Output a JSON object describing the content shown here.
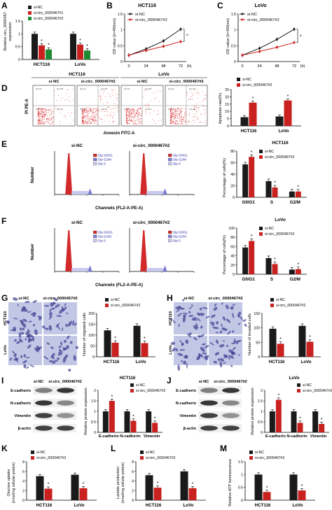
{
  "colors": {
    "black": "#1a1a1a",
    "red": "#c8211f",
    "green": "#1d8a34",
    "grey": "#555555",
    "flow_dot": "#d8262a",
    "hist_fill": "#d22a2a",
    "g01": "#d22a2a",
    "g2m": "#7a7ad6",
    "s_phase": "#c9c9f0"
  },
  "legend": {
    "nc": "si-NC",
    "n1": "si-circ_0000467#1",
    "n2": "si-circ_0000467#2"
  },
  "panels": {
    "A": {
      "letter": "A",
      "ylabel": [
        "Relative circ_0000467",
        "expression"
      ],
      "categories": [
        "HCT116",
        "LoVo"
      ]
    },
    "B": {
      "letter": "B",
      "title": "HCT116",
      "ylabel": "OD value (λ=450nm)"
    },
    "C": {
      "letter": "C",
      "title": "LoVo",
      "ylabel": "OD value (λ=450nm)"
    },
    "D": {
      "letter": "D",
      "header_groups": [
        "HCT116",
        "LoVo"
      ],
      "cols": [
        "si-NC",
        "si-circ_0000467#2",
        "si-NC",
        "si-circ_0000467#2"
      ],
      "xlabel": "Annexin FITC-A",
      "ylabel": "PI PE-A",
      "bar_ylabel": "Apoptosis rate(%)",
      "quads": [
        "Q1-UL",
        "Q1-UR",
        "Q1-LL",
        "Q1-LR"
      ]
    },
    "E": {
      "letter": "E",
      "cols": [
        "si-NC",
        "si-circ_0000467#2"
      ],
      "xlabel": "Channels (FL2-A-PE-A)",
      "ylabel": "Number",
      "bar_title": "HCT116",
      "bar_ylabel": "Percentage of cells(%)"
    },
    "F": {
      "letter": "F",
      "cols": [
        "si-NC",
        "si-circ_0000467#2"
      ],
      "xlabel": "Channels (FL2-A-PE-A)",
      "ylabel": "Number",
      "bar_title": "LoVo",
      "bar_ylabel": "Percentage of cells(%)"
    },
    "hist_legend": [
      "Dip G0/G1",
      "Dip G2/M",
      "Dip S"
    ],
    "G": {
      "letter": "G",
      "cols": [
        "si-NC",
        "si-circ_0000467#2"
      ],
      "rows": [
        "HCT116",
        "LoVo"
      ],
      "bar_ylabel": "Number of migrated cells"
    },
    "H": {
      "letter": "H",
      "cols": [
        "si-NC",
        "si-circ_0000467#2"
      ],
      "rows": [
        "HCT116",
        "LoVo"
      ],
      "bar_ylabel": "Number of invaded cells"
    },
    "I": {
      "letter": "I",
      "cols": [
        "si-NC",
        "si-circ_0000467#2"
      ],
      "blots": [
        "E-cadherin",
        "N-cadherin",
        "Vimentin",
        "β-actin"
      ],
      "bar_title": "HCT116",
      "bar_ylabel": "Relative protein expression"
    },
    "J": {
      "letter": "J",
      "cols": [
        "si-NC",
        "si-circ_0000467#2"
      ],
      "blots": [
        "E-cadherin",
        "N-cadherin",
        "Vimentin",
        "β-actin"
      ],
      "bar_title": "LoVo",
      "bar_ylabel": "Relative protein expression"
    },
    "K": {
      "letter": "K",
      "ylabel": [
        "Glucose uptake",
        "(nmol/mg cellular protein)"
      ]
    },
    "L": {
      "letter": "L",
      "ylabel": [
        "Lactate production",
        "(nmol/mg cellular protein)"
      ]
    },
    "M": {
      "letter": "M",
      "ylabel": "Relative ATP luminescence"
    }
  },
  "chart_data": [
    {
      "panel": "A",
      "type": "bar",
      "categories": [
        "HCT116",
        "LoVo"
      ],
      "series": [
        {
          "name": "si-NC",
          "values": [
            1.0,
            1.0
          ]
        },
        {
          "name": "si-circ_0000467#1",
          "values": [
            0.55,
            0.58
          ]
        },
        {
          "name": "si-circ_0000467#2",
          "values": [
            0.39,
            0.35
          ]
        }
      ],
      "ylim": [
        0,
        1.5
      ],
      "yticks": [
        0,
        0.5,
        1.0,
        1.5
      ],
      "significance": "*"
    },
    {
      "panel": "B",
      "type": "line",
      "x": [
        0,
        24,
        48,
        72
      ],
      "xlabel_unit": "(h)",
      "series": [
        {
          "name": "si-NC",
          "values": [
            0.2,
            0.4,
            0.65,
            1.02
          ]
        },
        {
          "name": "si-circ_0000467#2",
          "values": [
            0.2,
            0.35,
            0.48,
            0.63
          ]
        }
      ],
      "ylim": [
        0,
        1.5
      ],
      "yticks": [
        0,
        0.5,
        1.0,
        1.5
      ],
      "significance": "*"
    },
    {
      "panel": "C",
      "type": "line",
      "x": [
        0,
        24,
        48,
        72
      ],
      "xlabel_unit": "(h)",
      "series": [
        {
          "name": "si-NC",
          "values": [
            0.2,
            0.42,
            0.7,
            1.02
          ]
        },
        {
          "name": "si-circ_0000467#2",
          "values": [
            0.2,
            0.32,
            0.45,
            0.6
          ]
        }
      ],
      "ylim": [
        0,
        1.5
      ],
      "yticks": [
        0,
        0.5,
        1.0,
        1.5
      ],
      "significance": "*"
    },
    {
      "panel": "D",
      "type": "bar",
      "categories": [
        "HCT116",
        "LoVo"
      ],
      "series": [
        {
          "name": "si-NC",
          "values": [
            6,
            6.5
          ]
        },
        {
          "name": "si-circ_0000467#2",
          "values": [
            16,
            17.5
          ]
        }
      ],
      "ylim": [
        0,
        25
      ],
      "yticks": [
        0,
        5,
        10,
        15,
        20,
        25
      ],
      "significance": "*"
    },
    {
      "panel": "E",
      "type": "bar",
      "categories": [
        "G0/G1",
        "S",
        "G2/M"
      ],
      "series": [
        {
          "name": "si-NC",
          "values": [
            57,
            28,
            10
          ]
        },
        {
          "name": "si-circ_0000467#2",
          "values": [
            70,
            17,
            10
          ]
        }
      ],
      "ylim": [
        0,
        80
      ],
      "yticks": [
        0,
        20,
        40,
        60,
        80
      ],
      "significance": "*"
    },
    {
      "panel": "F",
      "type": "bar",
      "categories": [
        "G0/G1",
        "S",
        "G2/M"
      ],
      "series": [
        {
          "name": "si-NC",
          "values": [
            58,
            35,
            10
          ]
        },
        {
          "name": "si-circ_0000467#2",
          "values": [
            72,
            22,
            11
          ]
        }
      ],
      "ylim": [
        0,
        100
      ],
      "yticks": [
        0,
        20,
        40,
        60,
        80,
        100
      ],
      "significance": "*"
    },
    {
      "panel": "G",
      "type": "bar",
      "categories": [
        "HCT116",
        "LoVo"
      ],
      "series": [
        {
          "name": "si-NC",
          "values": [
            122,
            143
          ]
        },
        {
          "name": "si-circ_0000467#2",
          "values": [
            65,
            63
          ]
        }
      ],
      "ylim": [
        0,
        200
      ],
      "yticks": [
        0,
        50,
        100,
        150,
        200
      ],
      "significance": "*"
    },
    {
      "panel": "H",
      "type": "bar",
      "categories": [
        "HCT116",
        "LoVo"
      ],
      "series": [
        {
          "name": "si-NC",
          "values": [
            97,
            107
          ]
        },
        {
          "name": "si-circ_0000467#2",
          "values": [
            45,
            52
          ]
        }
      ],
      "ylim": [
        0,
        150
      ],
      "yticks": [
        0,
        50,
        100,
        150
      ],
      "significance": "*"
    },
    {
      "panel": "I",
      "type": "bar",
      "categories": [
        "E-cadherin",
        "N-cadherin",
        "Vimentin"
      ],
      "series": [
        {
          "name": "si-NC",
          "values": [
            1.0,
            1.0,
            1.0
          ]
        },
        {
          "name": "si-circ_0000467#2",
          "values": [
            1.5,
            0.55,
            0.45
          ]
        }
      ],
      "ylim": [
        0,
        2.0
      ],
      "yticks": [
        0,
        0.5,
        1.0,
        1.5,
        2.0
      ],
      "significance": "*"
    },
    {
      "panel": "J",
      "type": "bar",
      "categories": [
        "E-cadherin",
        "N-cadherin",
        "Vimentin"
      ],
      "series": [
        {
          "name": "si-NC",
          "values": [
            1.0,
            1.0,
            1.0
          ]
        },
        {
          "name": "si-circ_0000467#2",
          "values": [
            1.55,
            0.45,
            0.4
          ]
        }
      ],
      "ylim": [
        0,
        2.0
      ],
      "yticks": [
        0,
        0.5,
        1.0,
        1.5,
        2.0
      ],
      "significance": "*"
    },
    {
      "panel": "K",
      "type": "bar",
      "categories": [
        "HCT116",
        "LoVo"
      ],
      "series": [
        {
          "name": "si-NC",
          "values": [
            5.0,
            5.3
          ]
        },
        {
          "name": "si-circ_0000467#2",
          "values": [
            2.4,
            2.5
          ]
        }
      ],
      "ylim": [
        0,
        8
      ],
      "yticks": [
        0,
        2,
        4,
        6,
        8
      ],
      "significance": "*"
    },
    {
      "panel": "L",
      "type": "bar",
      "categories": [
        "HCT116",
        "LoVo"
      ],
      "series": [
        {
          "name": "si-NC",
          "values": [
            5.2,
            6.0
          ]
        },
        {
          "name": "si-circ_0000467#2",
          "values": [
            2.6,
            2.5
          ]
        }
      ],
      "ylim": [
        0,
        8
      ],
      "yticks": [
        0,
        2,
        4,
        6,
        8
      ],
      "significance": "*"
    },
    {
      "panel": "M",
      "type": "bar",
      "categories": [
        "HCT116",
        "LoVo"
      ],
      "series": [
        {
          "name": "si-NC",
          "values": [
            1.0,
            1.0
          ]
        },
        {
          "name": "si-circ_0000467#2",
          "values": [
            0.32,
            0.38
          ]
        }
      ],
      "ylim": [
        0,
        1.5
      ],
      "yticks": [
        0,
        0.5,
        1.0,
        1.5
      ],
      "significance": "*"
    }
  ]
}
